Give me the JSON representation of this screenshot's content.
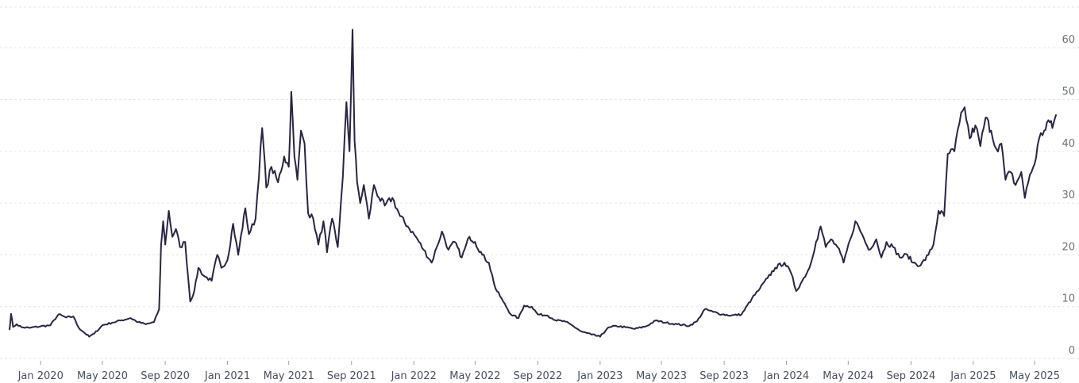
{
  "chart_data": {
    "type": "line",
    "title": "",
    "xlabel": "",
    "ylabel": "",
    "ylim": [
      0,
      68
    ],
    "grid": "horizontal-dashed",
    "y_axis_side": "right",
    "y_ticks": [
      "0",
      "10",
      "20",
      "30",
      "40",
      "50",
      "60"
    ],
    "x_ticks": [
      {
        "label": "Jan 2020",
        "date": "2020-01-01"
      },
      {
        "label": "May 2020",
        "date": "2020-05-01"
      },
      {
        "label": "Sep 2020",
        "date": "2020-09-01"
      },
      {
        "label": "Jan 2021",
        "date": "2021-01-01"
      },
      {
        "label": "May 2021",
        "date": "2021-05-01"
      },
      {
        "label": "Sep 2021",
        "date": "2021-09-01"
      },
      {
        "label": "Jan 2022",
        "date": "2022-01-01"
      },
      {
        "label": "May 2022",
        "date": "2022-05-01"
      },
      {
        "label": "Sep 2022",
        "date": "2022-09-01"
      },
      {
        "label": "Jan 2023",
        "date": "2023-01-01"
      },
      {
        "label": "May 2023",
        "date": "2023-05-01"
      },
      {
        "label": "Sep 2023",
        "date": "2023-09-01"
      },
      {
        "label": "Jan 2024",
        "date": "2024-01-01"
      },
      {
        "label": "May 2024",
        "date": "2024-05-01"
      },
      {
        "label": "Sep 2024",
        "date": "2024-09-01"
      },
      {
        "label": "Jan 2025",
        "date": "2025-01-01"
      },
      {
        "label": "May 2025",
        "date": "2025-05-01"
      }
    ],
    "series": [
      {
        "color": "#2a2444",
        "points": [
          [
            "2019-11-01",
            5.6
          ],
          [
            "2019-11-04",
            8.6
          ],
          [
            "2019-11-08",
            6.1
          ],
          [
            "2019-11-15",
            6.6
          ],
          [
            "2019-11-25",
            6.0
          ],
          [
            "2019-12-10",
            5.9
          ],
          [
            "2020-01-01",
            6.2
          ],
          [
            "2020-01-20",
            6.4
          ],
          [
            "2020-02-05",
            8.5
          ],
          [
            "2020-02-20",
            7.9
          ],
          [
            "2020-03-05",
            8.1
          ],
          [
            "2020-03-15",
            6.0
          ],
          [
            "2020-03-25",
            5.1
          ],
          [
            "2020-04-05",
            4.2
          ],
          [
            "2020-04-15",
            4.8
          ],
          [
            "2020-05-01",
            6.4
          ],
          [
            "2020-05-20",
            6.9
          ],
          [
            "2020-06-05",
            7.3
          ],
          [
            "2020-06-25",
            7.8
          ],
          [
            "2020-07-10",
            7.0
          ],
          [
            "2020-07-25",
            6.6
          ],
          [
            "2020-08-10",
            7.0
          ],
          [
            "2020-08-20",
            9.5
          ],
          [
            "2020-08-24",
            22.0
          ],
          [
            "2020-08-28",
            26.5
          ],
          [
            "2020-09-01",
            22.0
          ],
          [
            "2020-09-08",
            28.5
          ],
          [
            "2020-09-15",
            23.5
          ],
          [
            "2020-09-22",
            25.0
          ],
          [
            "2020-09-30",
            21.5
          ],
          [
            "2020-10-10",
            22.5
          ],
          [
            "2020-10-20",
            11.0
          ],
          [
            "2020-10-28",
            13.0
          ],
          [
            "2020-11-05",
            17.5
          ],
          [
            "2020-11-15",
            16.0
          ],
          [
            "2020-12-01",
            15.0
          ],
          [
            "2020-12-12",
            20.0
          ],
          [
            "2020-12-20",
            17.5
          ],
          [
            "2021-01-01",
            19.0
          ],
          [
            "2021-01-12",
            26.0
          ],
          [
            "2021-01-22",
            20.0
          ],
          [
            "2021-02-05",
            29.0
          ],
          [
            "2021-02-12",
            24.0
          ],
          [
            "2021-02-25",
            27.0
          ],
          [
            "2021-03-10",
            44.5
          ],
          [
            "2021-03-18",
            33.0
          ],
          [
            "2021-03-28",
            37.0
          ],
          [
            "2021-04-10",
            34.0
          ],
          [
            "2021-04-22",
            39.0
          ],
          [
            "2021-05-01",
            37.0
          ],
          [
            "2021-05-06",
            51.5
          ],
          [
            "2021-05-12",
            39.0
          ],
          [
            "2021-05-18",
            34.5
          ],
          [
            "2021-05-25",
            44.0
          ],
          [
            "2021-06-01",
            41.5
          ],
          [
            "2021-06-08",
            28.0
          ],
          [
            "2021-06-18",
            27.0
          ],
          [
            "2021-06-28",
            22.0
          ],
          [
            "2021-07-08",
            26.5
          ],
          [
            "2021-07-15",
            20.5
          ],
          [
            "2021-07-25",
            27.0
          ],
          [
            "2021-08-05",
            21.5
          ],
          [
            "2021-08-15",
            35.0
          ],
          [
            "2021-08-22",
            49.5
          ],
          [
            "2021-08-28",
            40.0
          ],
          [
            "2021-09-03",
            63.5
          ],
          [
            "2021-09-07",
            42.0
          ],
          [
            "2021-09-12",
            34.0
          ],
          [
            "2021-09-18",
            30.0
          ],
          [
            "2021-09-25",
            33.5
          ],
          [
            "2021-10-05",
            27.0
          ],
          [
            "2021-10-15",
            33.5
          ],
          [
            "2021-10-25",
            31.0
          ],
          [
            "2021-11-05",
            29.5
          ],
          [
            "2021-11-20",
            31.0
          ],
          [
            "2021-12-05",
            27.5
          ],
          [
            "2021-12-20",
            25.5
          ],
          [
            "2022-01-05",
            23.5
          ],
          [
            "2022-01-20",
            21.0
          ],
          [
            "2022-02-05",
            18.5
          ],
          [
            "2022-02-15",
            21.5
          ],
          [
            "2022-02-25",
            24.5
          ],
          [
            "2022-03-10",
            21.0
          ],
          [
            "2022-03-22",
            22.5
          ],
          [
            "2022-04-05",
            19.5
          ],
          [
            "2022-04-20",
            23.5
          ],
          [
            "2022-05-01",
            22.5
          ],
          [
            "2022-05-15",
            20.0
          ],
          [
            "2022-05-28",
            18.5
          ],
          [
            "2022-06-10",
            13.5
          ],
          [
            "2022-06-25",
            11.0
          ],
          [
            "2022-07-10",
            8.5
          ],
          [
            "2022-07-25",
            7.8
          ],
          [
            "2022-08-05",
            10.2
          ],
          [
            "2022-08-20",
            10.0
          ],
          [
            "2022-09-01",
            8.5
          ],
          [
            "2022-09-20",
            8.3
          ],
          [
            "2022-10-05",
            7.4
          ],
          [
            "2022-10-25",
            7.1
          ],
          [
            "2022-11-10",
            6.2
          ],
          [
            "2022-11-25",
            5.2
          ],
          [
            "2022-12-15",
            4.6
          ],
          [
            "2023-01-01",
            4.2
          ],
          [
            "2023-01-15",
            5.8
          ],
          [
            "2023-02-01",
            6.3
          ],
          [
            "2023-02-20",
            6.0
          ],
          [
            "2023-03-10",
            5.7
          ],
          [
            "2023-04-01",
            6.2
          ],
          [
            "2023-04-20",
            7.3
          ],
          [
            "2023-05-10",
            6.9
          ],
          [
            "2023-06-01",
            6.6
          ],
          [
            "2023-06-25",
            6.3
          ],
          [
            "2023-07-10",
            7.2
          ],
          [
            "2023-07-25",
            9.5
          ],
          [
            "2023-08-10",
            9.0
          ],
          [
            "2023-08-28",
            8.5
          ],
          [
            "2023-09-15",
            8.3
          ],
          [
            "2023-10-05",
            8.5
          ],
          [
            "2023-10-25",
            11.5
          ],
          [
            "2023-11-10",
            13.5
          ],
          [
            "2023-11-25",
            15.5
          ],
          [
            "2023-12-10",
            17.5
          ],
          [
            "2023-12-28",
            18.5
          ],
          [
            "2024-01-10",
            16.5
          ],
          [
            "2024-01-20",
            13.0
          ],
          [
            "2024-02-01",
            15.0
          ],
          [
            "2024-02-15",
            17.5
          ],
          [
            "2024-02-28",
            22.5
          ],
          [
            "2024-03-08",
            25.5
          ],
          [
            "2024-03-18",
            21.5
          ],
          [
            "2024-03-28",
            23.0
          ],
          [
            "2024-04-10",
            21.5
          ],
          [
            "2024-04-22",
            18.5
          ],
          [
            "2024-05-05",
            23.0
          ],
          [
            "2024-05-15",
            26.5
          ],
          [
            "2024-05-28",
            24.0
          ],
          [
            "2024-06-10",
            21.0
          ],
          [
            "2024-06-25",
            23.0
          ],
          [
            "2024-07-05",
            19.5
          ],
          [
            "2024-07-15",
            22.5
          ],
          [
            "2024-07-28",
            21.5
          ],
          [
            "2024-08-10",
            19.5
          ],
          [
            "2024-08-25",
            20.0
          ],
          [
            "2024-09-05",
            18.5
          ],
          [
            "2024-09-20",
            18.0
          ],
          [
            "2024-10-05",
            20.0
          ],
          [
            "2024-10-15",
            22.0
          ],
          [
            "2024-10-25",
            28.5
          ],
          [
            "2024-11-05",
            27.5
          ],
          [
            "2024-11-12",
            39.5
          ],
          [
            "2024-11-25",
            40.0
          ],
          [
            "2024-12-05",
            45.5
          ],
          [
            "2024-12-15",
            48.5
          ],
          [
            "2024-12-25",
            42.5
          ],
          [
            "2025-01-05",
            45.0
          ],
          [
            "2025-01-15",
            41.0
          ],
          [
            "2025-01-25",
            46.5
          ],
          [
            "2025-02-05",
            44.0
          ],
          [
            "2025-02-15",
            40.5
          ],
          [
            "2025-02-25",
            41.5
          ],
          [
            "2025-03-05",
            34.5
          ],
          [
            "2025-03-15",
            36.0
          ],
          [
            "2025-03-25",
            33.5
          ],
          [
            "2025-04-05",
            36.0
          ],
          [
            "2025-04-12",
            31.0
          ],
          [
            "2025-04-22",
            35.5
          ],
          [
            "2025-05-01",
            37.5
          ],
          [
            "2025-05-10",
            42.5
          ],
          [
            "2025-05-20",
            44.0
          ],
          [
            "2025-05-28",
            46.0
          ],
          [
            "2025-06-05",
            44.5
          ],
          [
            "2025-06-12",
            47.0
          ]
        ]
      }
    ]
  }
}
